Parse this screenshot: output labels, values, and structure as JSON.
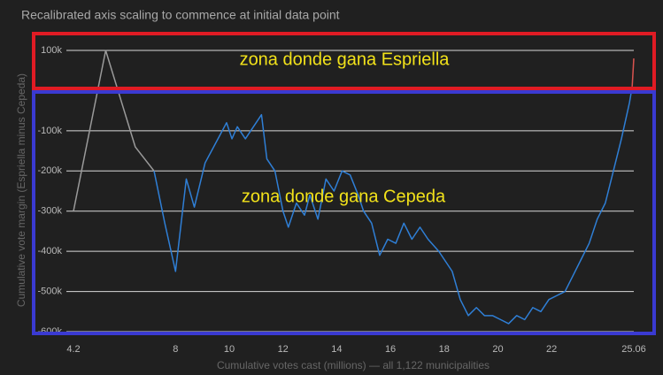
{
  "chart_data": {
    "type": "line",
    "title": "Recalibrated axis scaling to commence at initial data point",
    "x_label": "Cumulative votes cast (millions) — all 1,122 municipalities",
    "y_label": "Cumulative vote margin (Espriella minus Cepeda)",
    "xlim": [
      4.2,
      25.06
    ],
    "xticks": [
      4.2,
      8,
      10,
      12,
      14,
      16,
      18,
      20,
      22,
      25.06
    ],
    "ylim": [
      -600000,
      100000
    ],
    "yticks": [
      {
        "value": 100000,
        "label": "100k"
      },
      {
        "value": -100000,
        "label": "-100k"
      },
      {
        "value": -200000,
        "label": "-200k"
      },
      {
        "value": -300000,
        "label": "-300k"
      },
      {
        "value": -400000,
        "label": "-400k"
      },
      {
        "value": -500000,
        "label": "-500k"
      },
      {
        "value": -600000,
        "label": "-600k"
      }
    ],
    "grid": true,
    "series": [
      {
        "color": "#9a9a9a",
        "x": [
          4.2,
          5.4,
          6.5,
          7.2
        ],
        "values": [
          -300000,
          100000,
          -140000,
          -200000
        ]
      },
      {
        "color": "#2f7fd6",
        "x": [
          7.2,
          7.6,
          8.0,
          8.4,
          8.7,
          9.1,
          9.5,
          9.9,
          10.1,
          10.3,
          10.6,
          10.9,
          11.2,
          11.4,
          11.7,
          12.0,
          12.2,
          12.5,
          12.8,
          13.0,
          13.3,
          13.6,
          13.9,
          14.2,
          14.5,
          14.8,
          15.0,
          15.3,
          15.6,
          15.9,
          16.2,
          16.5,
          16.8,
          17.1,
          17.4,
          17.8,
          18.1,
          18.3,
          18.6,
          18.9,
          19.2,
          19.5,
          19.8,
          20.1,
          20.4,
          20.7,
          21.0,
          21.3,
          21.6,
          21.9,
          22.2,
          22.5,
          22.8,
          23.1,
          23.4,
          23.7,
          24.0,
          24.3,
          24.6,
          24.9,
          25.0
        ],
        "values": [
          -200000,
          -330000,
          -450000,
          -220000,
          -290000,
          -180000,
          -130000,
          -80000,
          -120000,
          -90000,
          -120000,
          -90000,
          -60000,
          -170000,
          -200000,
          -300000,
          -340000,
          -280000,
          -310000,
          -260000,
          -320000,
          -220000,
          -250000,
          -200000,
          -210000,
          -260000,
          -300000,
          -330000,
          -410000,
          -370000,
          -380000,
          -330000,
          -370000,
          -340000,
          -370000,
          -400000,
          -430000,
          -450000,
          -520000,
          -560000,
          -540000,
          -560000,
          -560000,
          -570000,
          -580000,
          -560000,
          -570000,
          -540000,
          -550000,
          -520000,
          -510000,
          -500000,
          -460000,
          -420000,
          -380000,
          -320000,
          -280000,
          -200000,
          -120000,
          -30000,
          10000
        ]
      },
      {
        "color": "#d9534f",
        "x": [
          25.0,
          25.06
        ],
        "values": [
          10000,
          80000
        ]
      }
    ],
    "annotations": [
      {
        "text": "zona donde gana  Espriella",
        "color": "#f2e21a"
      },
      {
        "text": "zona donde gana Cepeda",
        "color": "#f2e21a"
      }
    ]
  }
}
